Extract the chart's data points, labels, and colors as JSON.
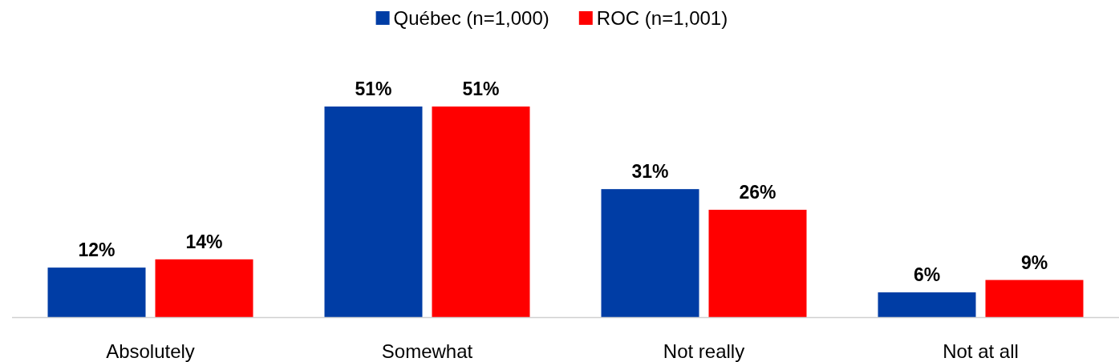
{
  "chart_data": {
    "type": "bar",
    "categories": [
      "Absolutely",
      "Somewhat",
      "Not really",
      "Not at all"
    ],
    "series": [
      {
        "name": "Québec (n=1,000)",
        "color": "#003da5",
        "values": [
          12,
          51,
          31,
          6
        ],
        "value_labels": [
          "12%",
          "51%",
          "31%",
          "6%"
        ]
      },
      {
        "name": "ROC (n=1,001)",
        "color": "#ff0000",
        "values": [
          14,
          51,
          26,
          9
        ],
        "value_labels": [
          "14%",
          "51%",
          "26%",
          "9%"
        ]
      }
    ],
    "legend": "top"
  }
}
